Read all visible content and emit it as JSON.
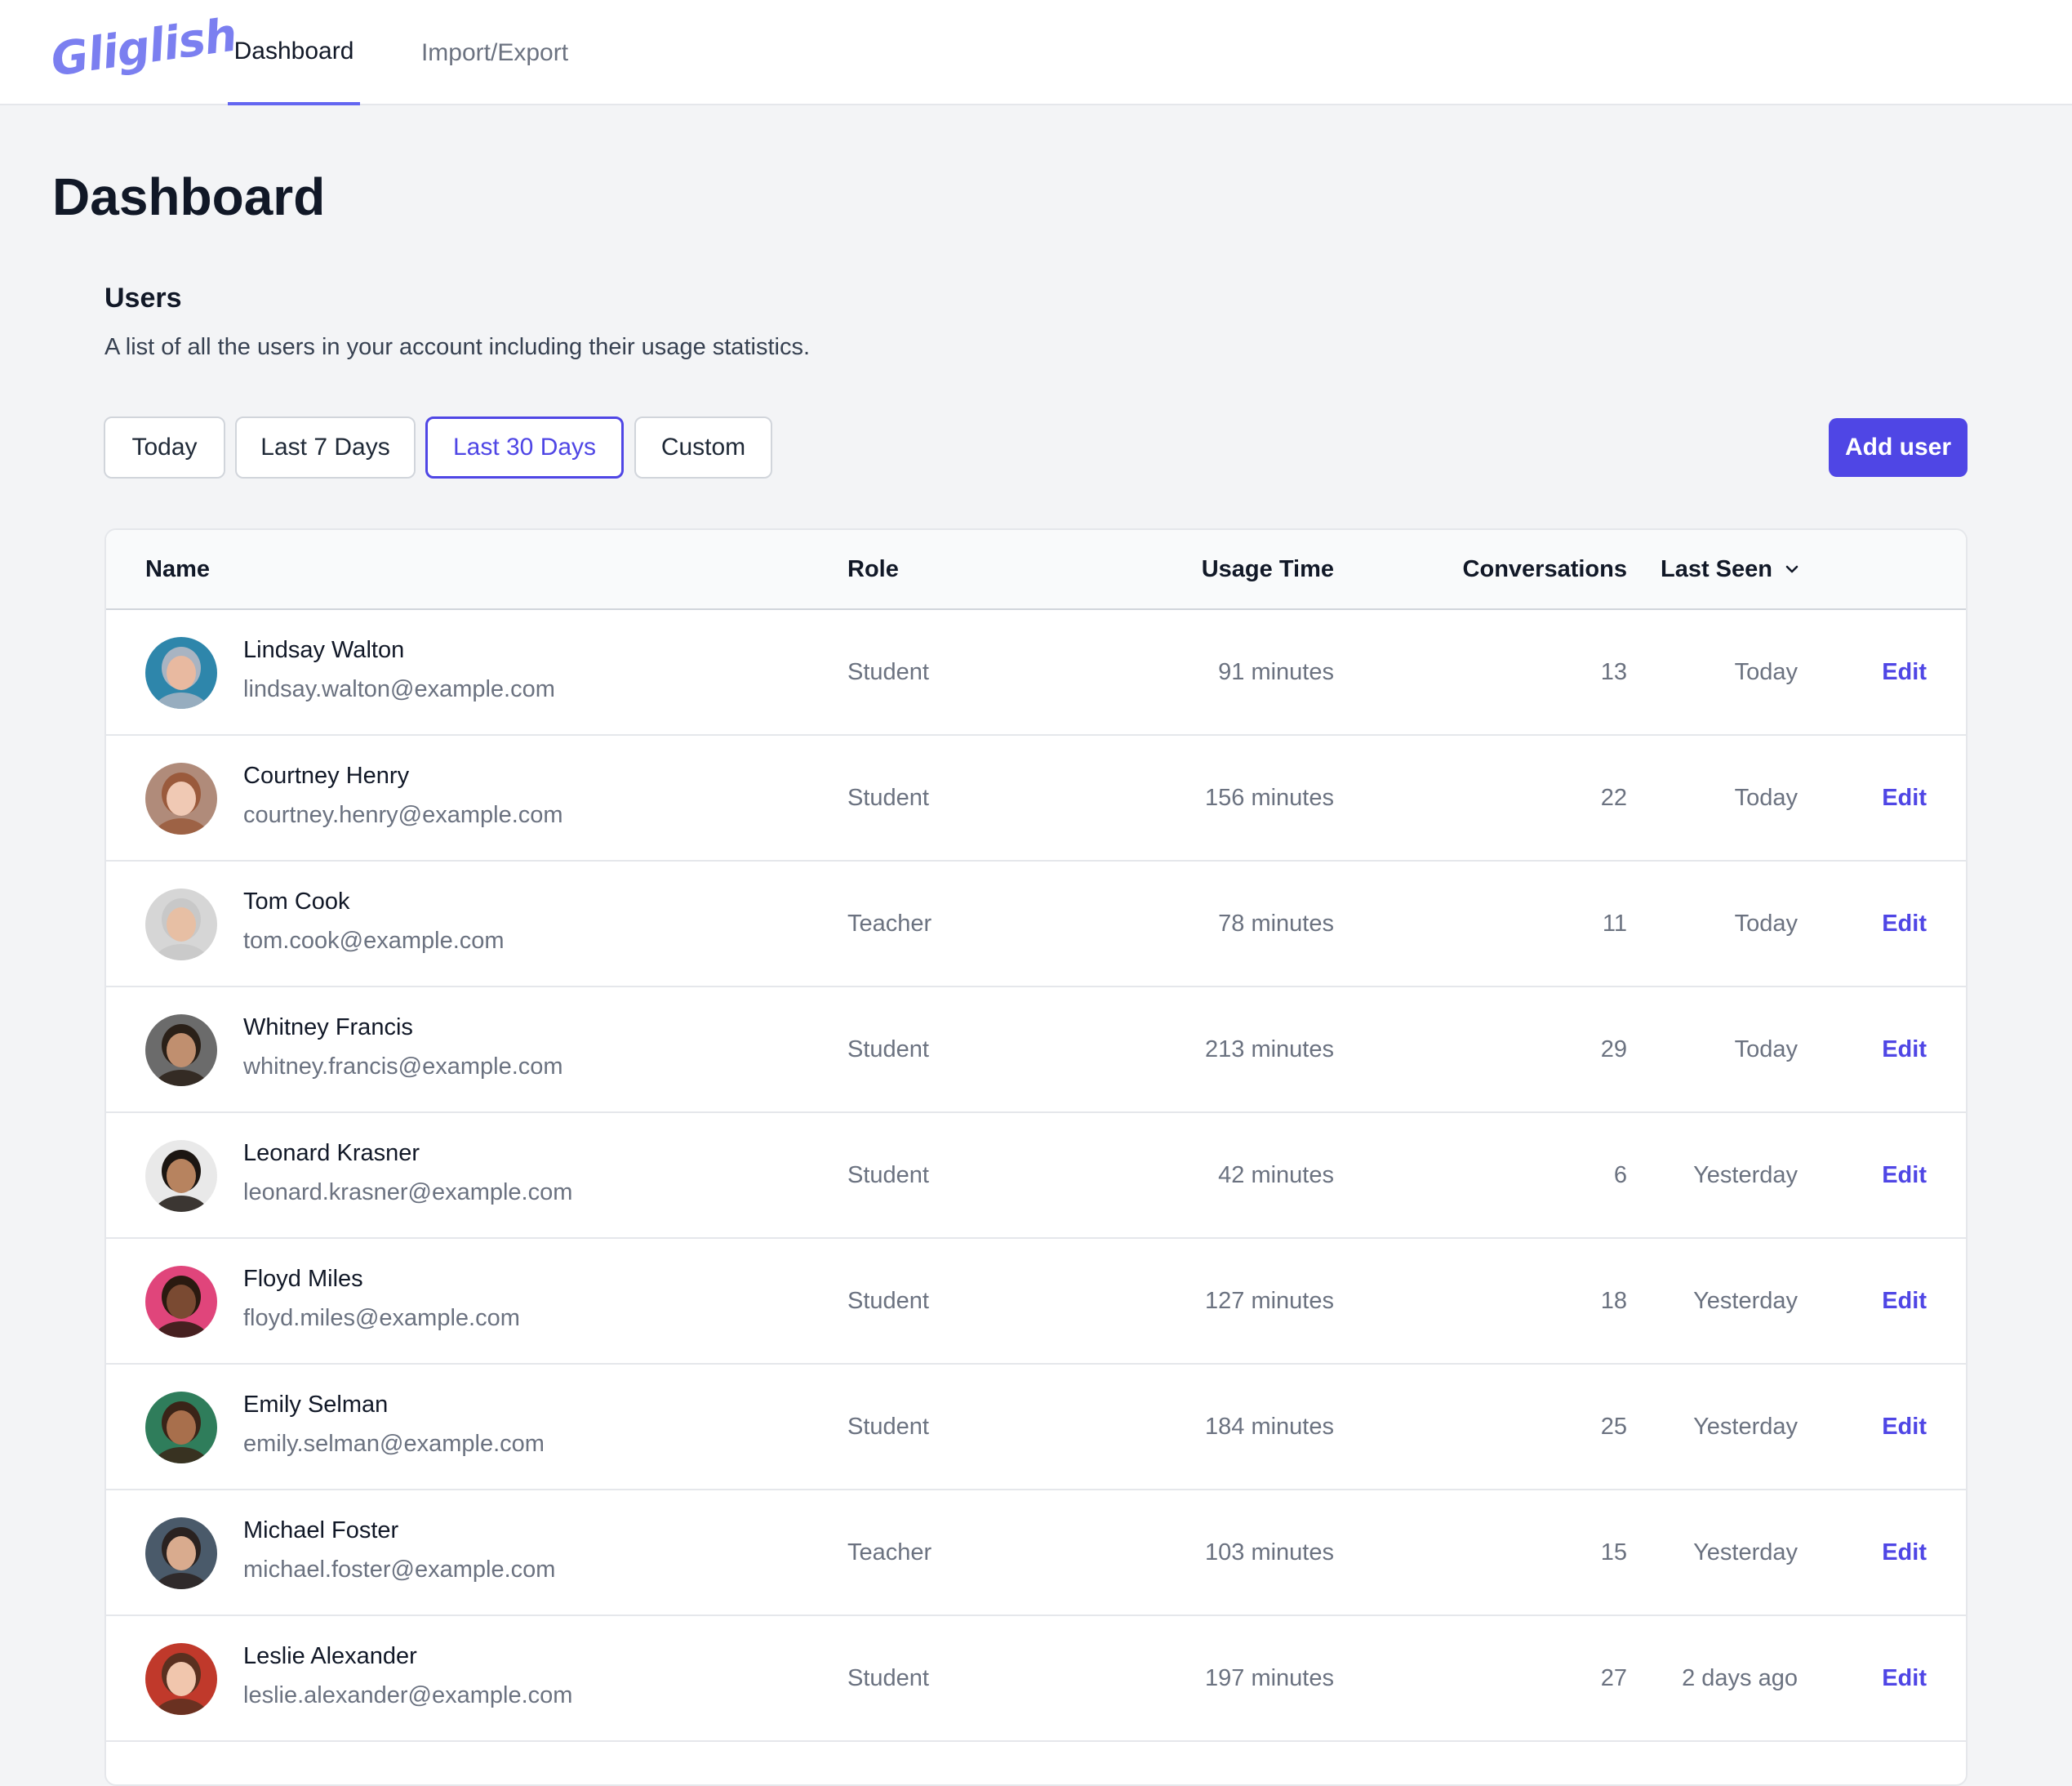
{
  "app": {
    "logo_text": "Gliglish",
    "logo_color": "#7b7ff0",
    "accent_color": "#4f46e5"
  },
  "nav": {
    "tabs": [
      {
        "label": "Dashboard",
        "active": true
      },
      {
        "label": "Import/Export",
        "active": false
      }
    ]
  },
  "page": {
    "title": "Dashboard"
  },
  "users_section": {
    "title": "Users",
    "description": "A list of all the users in your account including their usage statistics.",
    "filters": [
      {
        "label": "Today",
        "selected": false
      },
      {
        "label": "Last 7 Days",
        "selected": false
      },
      {
        "label": "Last 30 Days",
        "selected": true
      },
      {
        "label": "Custom",
        "selected": false
      }
    ],
    "add_button_label": "Add user"
  },
  "table": {
    "columns": {
      "name": "Name",
      "role": "Role",
      "usage_time": "Usage Time",
      "conversations": "Conversations",
      "last_seen": "Last Seen"
    },
    "sort_icon": "chevron-down-icon",
    "edit_label": "Edit",
    "rows": [
      {
        "name": "Lindsay Walton",
        "email": "lindsay.walton@example.com",
        "role": "Student",
        "usage_time": "91 minutes",
        "conversations": "13",
        "last_seen": "Today",
        "avatar_bg": "#2e86ab",
        "avatar_skin": "#e8b9a0",
        "avatar_hair": "#a9b4c2"
      },
      {
        "name": "Courtney Henry",
        "email": "courtney.henry@example.com",
        "role": "Student",
        "usage_time": "156 minutes",
        "conversations": "22",
        "last_seen": "Today",
        "avatar_bg": "#b08b7a",
        "avatar_skin": "#f0c9b4",
        "avatar_hair": "#9a5a3c"
      },
      {
        "name": "Tom Cook",
        "email": "tom.cook@example.com",
        "role": "Teacher",
        "usage_time": "78 minutes",
        "conversations": "11",
        "last_seen": "Today",
        "avatar_bg": "#d6d6d6",
        "avatar_skin": "#e7bfa4",
        "avatar_hair": "#c8c8c8"
      },
      {
        "name": "Whitney Francis",
        "email": "whitney.francis@example.com",
        "role": "Student",
        "usage_time": "213 minutes",
        "conversations": "29",
        "last_seen": "Today",
        "avatar_bg": "#6b6b6b",
        "avatar_skin": "#c08f6f",
        "avatar_hair": "#2a2018"
      },
      {
        "name": "Leonard Krasner",
        "email": "leonard.krasner@example.com",
        "role": "Student",
        "usage_time": "42 minutes",
        "conversations": "6",
        "last_seen": "Yesterday",
        "avatar_bg": "#e9e9e9",
        "avatar_skin": "#b7835f",
        "avatar_hair": "#1c1612"
      },
      {
        "name": "Floyd Miles",
        "email": "floyd.miles@example.com",
        "role": "Student",
        "usage_time": "127 minutes",
        "conversations": "18",
        "last_seen": "Yesterday",
        "avatar_bg": "#e0457b",
        "avatar_skin": "#7a4a32",
        "avatar_hair": "#2a1a10"
      },
      {
        "name": "Emily Selman",
        "email": "emily.selman@example.com",
        "role": "Student",
        "usage_time": "184 minutes",
        "conversations": "25",
        "last_seen": "Yesterday",
        "avatar_bg": "#2f7d5b",
        "avatar_skin": "#a86f4c",
        "avatar_hair": "#3a2418"
      },
      {
        "name": "Michael Foster",
        "email": "michael.foster@example.com",
        "role": "Teacher",
        "usage_time": "103 minutes",
        "conversations": "15",
        "last_seen": "Yesterday",
        "avatar_bg": "#4a5a6a",
        "avatar_skin": "#d9ab8e",
        "avatar_hair": "#2a2220"
      },
      {
        "name": "Leslie Alexander",
        "email": "leslie.alexander@example.com",
        "role": "Student",
        "usage_time": "197 minutes",
        "conversations": "27",
        "last_seen": "2 days ago",
        "avatar_bg": "#c0392b",
        "avatar_skin": "#f1c6ad",
        "avatar_hair": "#5a3020"
      }
    ]
  }
}
